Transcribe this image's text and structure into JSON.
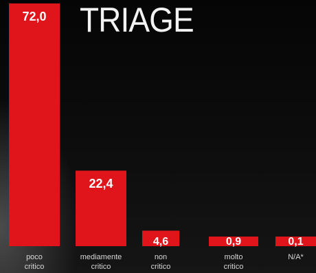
{
  "chart_data": {
    "type": "bar",
    "title": "TRIAGE",
    "categories": [
      [
        "poco",
        "critico"
      ],
      [
        "mediamente",
        "critico"
      ],
      [
        "non",
        "critico"
      ],
      [
        "molto",
        "critico"
      ],
      [
        "N/A*"
      ]
    ],
    "values": [
      72.0,
      22.4,
      4.6,
      0.9,
      0.1
    ],
    "value_labels": [
      "72,0",
      "22,4",
      "4,6",
      "0,9",
      "0,1"
    ],
    "xlabel": "",
    "ylabel": "",
    "grid": false,
    "legend": "none",
    "bar_color": "#e0151c",
    "background_color": "#0b0b0b"
  }
}
